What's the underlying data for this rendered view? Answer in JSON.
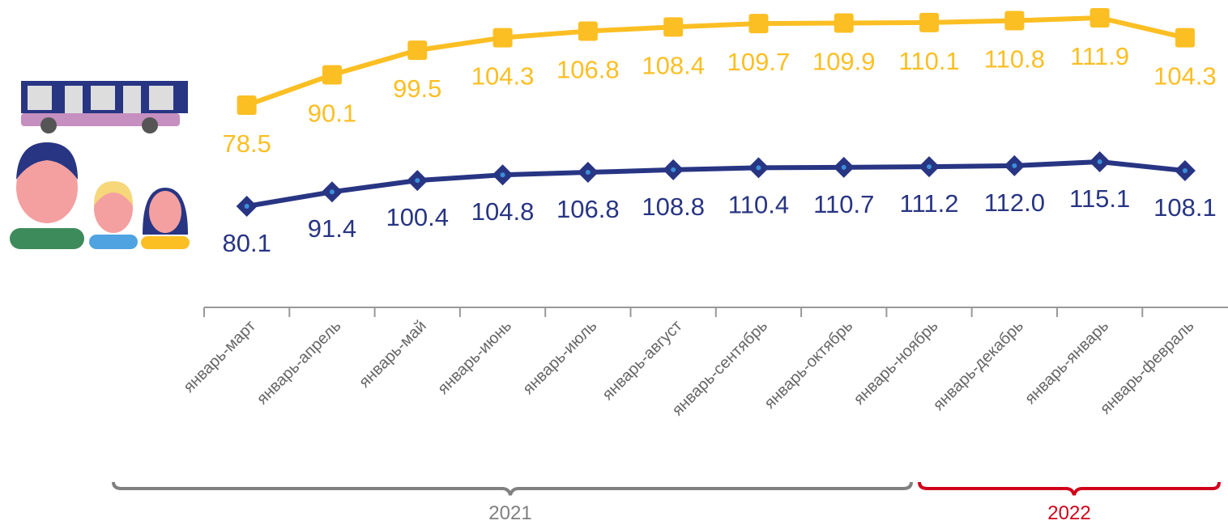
{
  "chart_data": {
    "type": "line",
    "categories": [
      "январь-март",
      "январь-апрель",
      "январь-май",
      "январь-июнь",
      "январь-июль",
      "январь-август",
      "январь-сентябрь",
      "январь-октябрь",
      "январь-ноябрь",
      "январь-декабрь",
      "январь-январь",
      "январь-февраль"
    ],
    "series": [
      {
        "color": "#fbbf24",
        "marker": "square",
        "values": [
          78.5,
          90.1,
          99.5,
          104.3,
          106.8,
          108.4,
          109.7,
          109.9,
          110.1,
          110.8,
          111.9,
          104.3
        ]
      },
      {
        "color": "#283583",
        "marker": "diamond",
        "axis": "y2",
        "values": [
          80.1,
          91.4,
          100.4,
          104.8,
          106.8,
          108.8,
          110.4,
          110.7,
          111.2,
          112.0,
          115.1,
          108.1
        ],
        "value_labels": [
          "80.1",
          "91.4",
          "100.4",
          "104.8",
          "106.8",
          "108.8",
          "110.4",
          "110.7",
          "111.2",
          "112.0",
          "115.1",
          "108.1"
        ]
      }
    ],
    "ylim": [
      13.6,
      118.7
    ],
    "y2lim": [
      26,
      242.4
    ],
    "groups": [
      {
        "label": "2021",
        "color": "#808080"
      },
      {
        "label": "2022",
        "color": "#d0021b"
      }
    ]
  }
}
